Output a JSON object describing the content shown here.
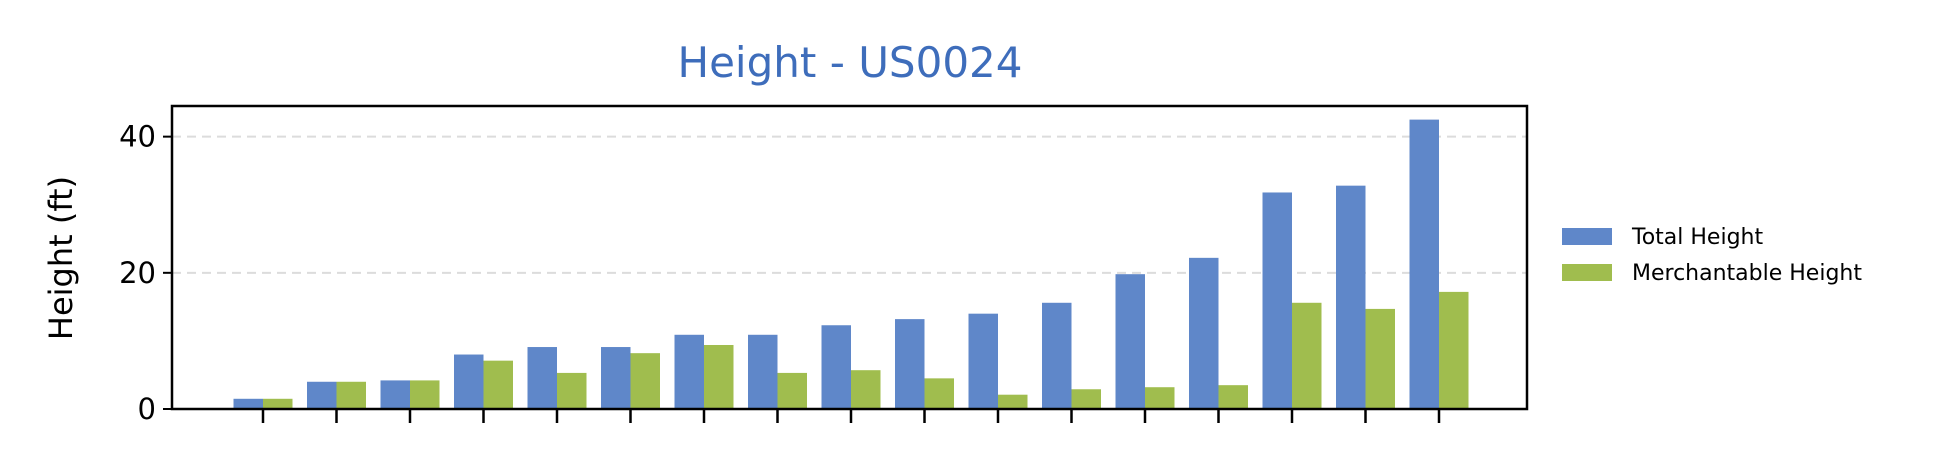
{
  "chart_data": {
    "type": "bar",
    "title": "Height - US0024",
    "xlabel": "",
    "ylabel": "Height (ft)",
    "ylim": [
      0,
      44.5
    ],
    "yticks": [
      0,
      20,
      40
    ],
    "grid": "horizontal dashed",
    "legend_position": "right",
    "categories": [
      "",
      "",
      "",
      "",
      "",
      "",
      "",
      "",
      "",
      "",
      "",
      "",
      "",
      "",
      "",
      "",
      ""
    ],
    "series": [
      {
        "name": "Total Height",
        "color": "#5f87c9",
        "values": [
          1.5,
          4.0,
          4.2,
          8.0,
          9.1,
          9.1,
          10.9,
          10.9,
          12.3,
          13.2,
          14.0,
          15.6,
          19.8,
          22.2,
          31.8,
          32.8,
          42.5
        ]
      },
      {
        "name": "Merchantable Height",
        "color": "#a0bd4e",
        "values": [
          1.5,
          4.0,
          4.2,
          7.1,
          5.3,
          8.2,
          9.4,
          5.3,
          5.7,
          4.5,
          2.1,
          2.9,
          3.2,
          3.5,
          15.6,
          14.7,
          17.2
        ]
      }
    ],
    "title_color": "#3e6dbb"
  }
}
